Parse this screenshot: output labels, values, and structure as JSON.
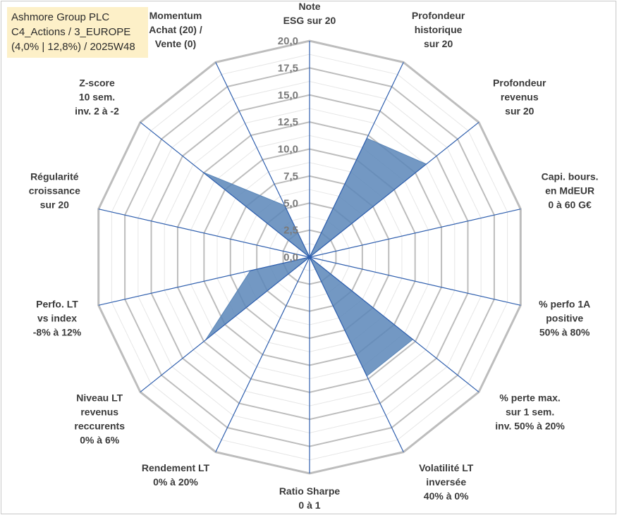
{
  "header": {
    "lines": [
      "Ashmore Group PLC",
      "C4_Actions / 3_EUROPE",
      "(4,0% | 12,8%) / 2025W48"
    ]
  },
  "colors": {
    "fill": "#5b86b8",
    "spoke": "#2f5fae",
    "grid": "#bdbdbd",
    "grid_minor": "#e6e6e6"
  },
  "chart_data": {
    "type": "radar",
    "title": "",
    "range": [
      0,
      20
    ],
    "ticks": [
      "0,0",
      "2,5",
      "5,0",
      "7,5",
      "10,0",
      "12,5",
      "15,0",
      "17,5",
      "20,0"
    ],
    "axes": [
      {
        "label": [
          "Note",
          "ESG sur 20"
        ],
        "value": 0
      },
      {
        "label": [
          "Profondeur",
          "historique",
          "sur 20"
        ],
        "value": 12.2
      },
      {
        "label": [
          "Profondeur",
          "revenus",
          "sur 20"
        ],
        "value": 13.8
      },
      {
        "label": [
          "Capi. bours.",
          "en MdEUR",
          "0 à 60 G€"
        ],
        "value": 0
      },
      {
        "label": [
          "% perfo 1A",
          "positive",
          "50% à 80%"
        ],
        "value": 0
      },
      {
        "label": [
          "% perte max.",
          "sur 1 sem.",
          "inv. 50% à 20%"
        ],
        "value": 12.2
      },
      {
        "label": [
          "Volatilité LT",
          "inversée",
          "40% à 0%"
        ],
        "value": 12.2
      },
      {
        "label": [
          "Ratio Sharpe",
          "0 à 1"
        ],
        "value": 0
      },
      {
        "label": [
          "Rendement LT",
          "0% à 20%"
        ],
        "value": 0
      },
      {
        "label": [
          "Niveau LT",
          "revenus",
          "reccurents",
          "0% à 6%"
        ],
        "value": 12.3
      },
      {
        "label": [
          "Perfo. LT",
          "vs index",
          "-8% à 12%"
        ],
        "value": 5.6
      },
      {
        "label": [
          "Régularité",
          "croissance",
          "sur 20"
        ],
        "value": 0
      },
      {
        "label": [
          "Z-score",
          "10 sem.",
          "inv. 2 à -2"
        ],
        "value": 12.6
      },
      {
        "label": [
          "Momentum",
          "Achat (20) /",
          "Vente (0)"
        ],
        "value": 5.3
      }
    ]
  }
}
